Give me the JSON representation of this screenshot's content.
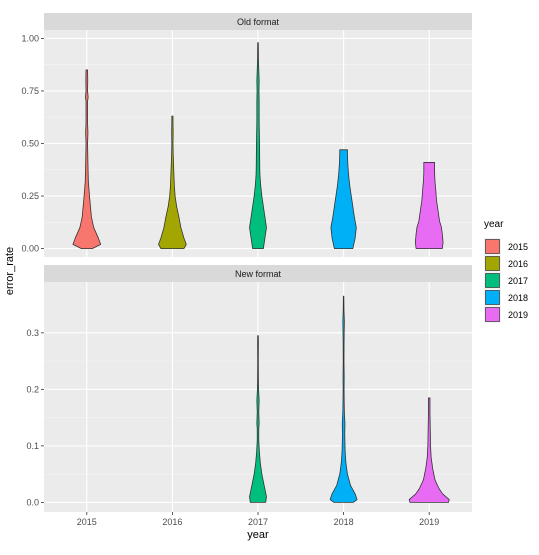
{
  "chart_data": {
    "type": "violin",
    "xlabel": "year",
    "ylabel": "error_rate",
    "x_categories": [
      "2015",
      "2016",
      "2017",
      "2018",
      "2019"
    ],
    "legend": {
      "title": "year",
      "placement": "right",
      "entries": [
        {
          "label": "2015",
          "color": "#F8766D"
        },
        {
          "label": "2016",
          "color": "#A3A500"
        },
        {
          "label": "2017",
          "color": "#00BF7D"
        },
        {
          "label": "2018",
          "color": "#00B0F6"
        },
        {
          "label": "2019",
          "color": "#E76BF3"
        }
      ]
    },
    "panels": [
      {
        "strip": "Old format",
        "ylim": [
          -0.04,
          1.04
        ],
        "yticks": [
          0.0,
          0.25,
          0.5,
          0.75,
          1.0
        ],
        "ytick_labels": [
          "0.00",
          "0.25",
          "0.50",
          "0.75",
          "1.00"
        ],
        "violins": [
          {
            "year": "2015",
            "max": 0.85,
            "profile": [
              [
                0.0,
                0.14
              ],
              [
                0.02,
                0.36
              ],
              [
                0.05,
                0.3
              ],
              [
                0.1,
                0.18
              ],
              [
                0.15,
                0.12
              ],
              [
                0.25,
                0.07
              ],
              [
                0.32,
                0.04
              ],
              [
                0.4,
                0.03
              ],
              [
                0.5,
                0.02
              ],
              [
                0.55,
                0.03
              ],
              [
                0.6,
                0.02
              ],
              [
                0.7,
                0.02
              ],
              [
                0.72,
                0.035
              ],
              [
                0.75,
                0.02
              ],
              [
                0.8,
                0.025
              ],
              [
                0.85,
                0.02
              ]
            ]
          },
          {
            "year": "2016",
            "max": 0.63,
            "profile": [
              [
                0.0,
                0.3
              ],
              [
                0.02,
                0.36
              ],
              [
                0.05,
                0.3
              ],
              [
                0.1,
                0.22
              ],
              [
                0.15,
                0.17
              ],
              [
                0.2,
                0.11
              ],
              [
                0.25,
                0.07
              ],
              [
                0.3,
                0.05
              ],
              [
                0.35,
                0.04
              ],
              [
                0.4,
                0.03
              ],
              [
                0.45,
                0.02
              ],
              [
                0.5,
                0.015
              ],
              [
                0.55,
                0.02
              ],
              [
                0.6,
                0.015
              ],
              [
                0.63,
                0.015
              ]
            ]
          },
          {
            "year": "2017",
            "max": 0.98,
            "profile": [
              [
                0.0,
                0.14
              ],
              [
                0.05,
                0.18
              ],
              [
                0.1,
                0.22
              ],
              [
                0.15,
                0.18
              ],
              [
                0.2,
                0.14
              ],
              [
                0.25,
                0.1
              ],
              [
                0.3,
                0.07
              ],
              [
                0.35,
                0.05
              ],
              [
                0.4,
                0.045
              ],
              [
                0.5,
                0.04
              ],
              [
                0.6,
                0.03
              ],
              [
                0.7,
                0.03
              ],
              [
                0.75,
                0.025
              ],
              [
                0.8,
                0.03
              ],
              [
                0.85,
                0.02
              ],
              [
                0.9,
                0.012
              ],
              [
                0.98,
                0.008
              ]
            ]
          },
          {
            "year": "2018",
            "max": 0.47,
            "profile": [
              [
                0.0,
                0.24
              ],
              [
                0.05,
                0.3
              ],
              [
                0.1,
                0.33
              ],
              [
                0.15,
                0.28
              ],
              [
                0.2,
                0.24
              ],
              [
                0.25,
                0.2
              ],
              [
                0.3,
                0.16
              ],
              [
                0.35,
                0.13
              ],
              [
                0.4,
                0.11
              ],
              [
                0.45,
                0.1
              ],
              [
                0.47,
                0.1
              ]
            ]
          },
          {
            "year": "2019",
            "max": 0.41,
            "profile": [
              [
                0.0,
                0.34
              ],
              [
                0.03,
                0.36
              ],
              [
                0.07,
                0.34
              ],
              [
                0.1,
                0.32
              ],
              [
                0.13,
                0.27
              ],
              [
                0.18,
                0.23
              ],
              [
                0.23,
                0.19
              ],
              [
                0.28,
                0.17
              ],
              [
                0.32,
                0.15
              ],
              [
                0.36,
                0.14
              ],
              [
                0.41,
                0.14
              ]
            ]
          }
        ]
      },
      {
        "strip": "New format",
        "ylim": [
          -0.017,
          0.39
        ],
        "yticks": [
          0.0,
          0.1,
          0.2,
          0.3
        ],
        "ytick_labels": [
          "0.0",
          "0.1",
          "0.2",
          "0.3"
        ],
        "violins": [
          {
            "year": "2017",
            "max": 0.295,
            "profile": [
              [
                0.0,
                0.2
              ],
              [
                0.01,
                0.22
              ],
              [
                0.02,
                0.19
              ],
              [
                0.03,
                0.16
              ],
              [
                0.05,
                0.1
              ],
              [
                0.07,
                0.06
              ],
              [
                0.09,
                0.035
              ],
              [
                0.11,
                0.02
              ],
              [
                0.13,
                0.02
              ],
              [
                0.14,
                0.03
              ],
              [
                0.16,
                0.02
              ],
              [
                0.18,
                0.03
              ],
              [
                0.2,
                0.015
              ],
              [
                0.22,
                0.01
              ],
              [
                0.25,
                0.008
              ],
              [
                0.28,
                0.01
              ],
              [
                0.295,
                0.008
              ]
            ]
          },
          {
            "year": "2018",
            "max": 0.365,
            "profile": [
              [
                0.0,
                0.25
              ],
              [
                0.005,
                0.35
              ],
              [
                0.015,
                0.3
              ],
              [
                0.03,
                0.18
              ],
              [
                0.05,
                0.1
              ],
              [
                0.07,
                0.06
              ],
              [
                0.09,
                0.04
              ],
              [
                0.12,
                0.03
              ],
              [
                0.14,
                0.035
              ],
              [
                0.16,
                0.02
              ],
              [
                0.18,
                0.015
              ],
              [
                0.2,
                0.012
              ],
              [
                0.22,
                0.015
              ],
              [
                0.25,
                0.01
              ],
              [
                0.28,
                0.012
              ],
              [
                0.3,
                0.015
              ],
              [
                0.32,
                0.02
              ],
              [
                0.34,
                0.01
              ],
              [
                0.365,
                0.006
              ]
            ]
          },
          {
            "year": "2019",
            "max": 0.185,
            "profile": [
              [
                0.0,
                0.5
              ],
              [
                0.005,
                0.52
              ],
              [
                0.015,
                0.35
              ],
              [
                0.025,
                0.25
              ],
              [
                0.04,
                0.15
              ],
              [
                0.06,
                0.09
              ],
              [
                0.08,
                0.05
              ],
              [
                0.1,
                0.035
              ],
              [
                0.12,
                0.03
              ],
              [
                0.14,
                0.025
              ],
              [
                0.16,
                0.02
              ],
              [
                0.185,
                0.02
              ]
            ]
          }
        ]
      }
    ]
  }
}
